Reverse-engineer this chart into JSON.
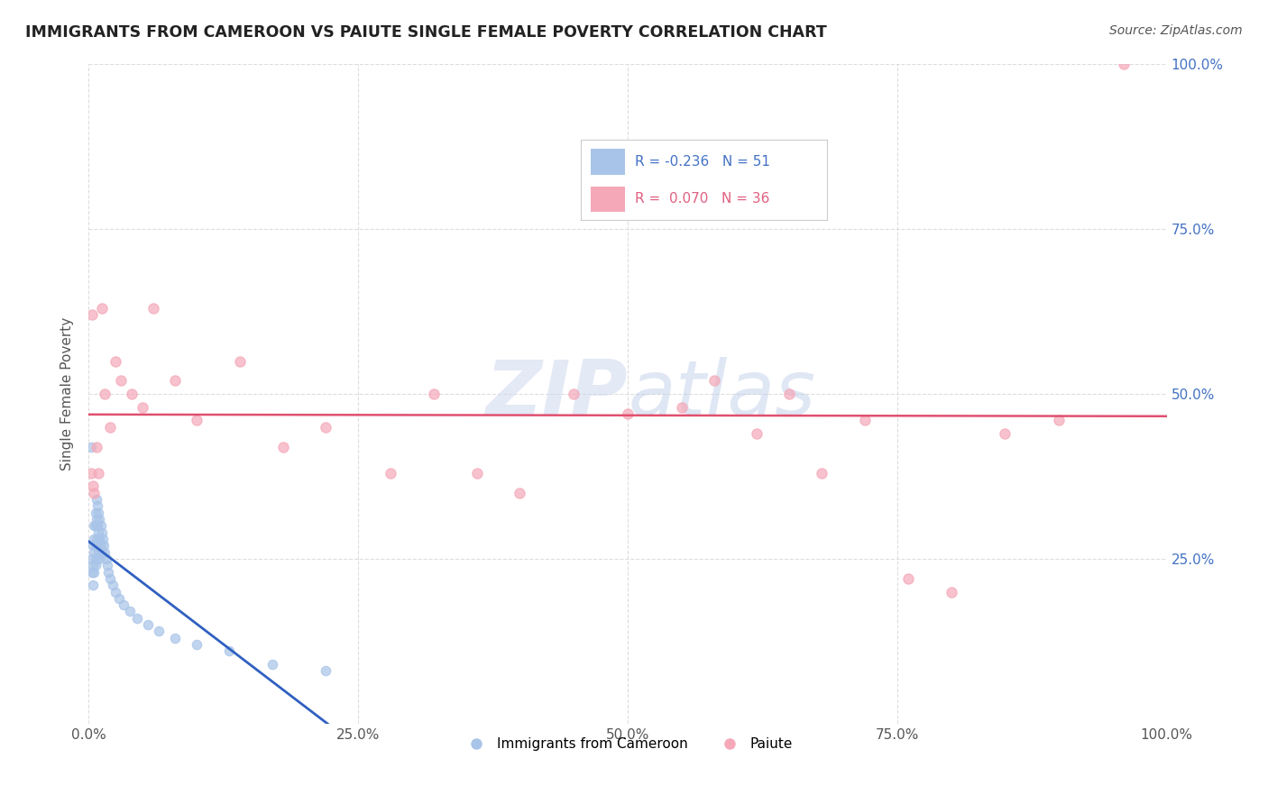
{
  "title": "IMMIGRANTS FROM CAMEROON VS PAIUTE SINGLE FEMALE POVERTY CORRELATION CHART",
  "source": "Source: ZipAtlas.com",
  "ylabel": "Single Female Poverty",
  "legend_label_blue": "Immigrants from Cameroon",
  "legend_label_pink": "Paiute",
  "R_blue": -0.236,
  "N_blue": 51,
  "R_pink": 0.07,
  "N_pink": 36,
  "blue_color": "#a8c4e8",
  "pink_color": "#f4a8b8",
  "trend_blue": "#3060c0",
  "trend_pink": "#e05070",
  "watermark": "ZIPatlas",
  "xlim": [
    0,
    1
  ],
  "ylim": [
    0,
    1
  ],
  "xticks": [
    0.0,
    0.25,
    0.5,
    0.75,
    1.0
  ],
  "yticks": [
    0.0,
    0.25,
    0.5,
    0.75,
    1.0
  ],
  "xticklabels": [
    "0.0%",
    "25.0%",
    "50.0%",
    "75.0%",
    "100.0%"
  ],
  "right_yticklabels": [
    "",
    "25.0%",
    "50.0%",
    "75.0%",
    "100.0%"
  ],
  "blue_x": [
    0.002,
    0.003,
    0.003,
    0.004,
    0.004,
    0.004,
    0.005,
    0.005,
    0.005,
    0.005,
    0.006,
    0.006,
    0.006,
    0.006,
    0.007,
    0.007,
    0.007,
    0.007,
    0.008,
    0.008,
    0.008,
    0.009,
    0.009,
    0.009,
    0.01,
    0.01,
    0.01,
    0.011,
    0.011,
    0.012,
    0.012,
    0.013,
    0.014,
    0.015,
    0.016,
    0.017,
    0.018,
    0.02,
    0.022,
    0.025,
    0.028,
    0.032,
    0.038,
    0.045,
    0.055,
    0.065,
    0.08,
    0.1,
    0.13,
    0.17,
    0.22
  ],
  "blue_y": [
    0.42,
    0.25,
    0.23,
    0.27,
    0.24,
    0.21,
    0.3,
    0.28,
    0.26,
    0.23,
    0.32,
    0.3,
    0.27,
    0.24,
    0.34,
    0.31,
    0.28,
    0.25,
    0.33,
    0.3,
    0.27,
    0.32,
    0.29,
    0.26,
    0.31,
    0.28,
    0.25,
    0.3,
    0.27,
    0.29,
    0.26,
    0.28,
    0.27,
    0.26,
    0.25,
    0.24,
    0.23,
    0.22,
    0.21,
    0.2,
    0.19,
    0.18,
    0.17,
    0.16,
    0.15,
    0.14,
    0.13,
    0.12,
    0.11,
    0.09,
    0.08
  ],
  "pink_x": [
    0.002,
    0.003,
    0.004,
    0.005,
    0.007,
    0.009,
    0.012,
    0.015,
    0.02,
    0.025,
    0.03,
    0.04,
    0.05,
    0.06,
    0.08,
    0.1,
    0.14,
    0.18,
    0.22,
    0.28,
    0.32,
    0.36,
    0.4,
    0.45,
    0.5,
    0.55,
    0.58,
    0.62,
    0.65,
    0.68,
    0.72,
    0.76,
    0.8,
    0.85,
    0.9,
    0.96
  ],
  "pink_y": [
    0.38,
    0.62,
    0.36,
    0.35,
    0.42,
    0.38,
    0.63,
    0.5,
    0.45,
    0.55,
    0.52,
    0.5,
    0.48,
    0.63,
    0.52,
    0.46,
    0.55,
    0.42,
    0.45,
    0.38,
    0.5,
    0.38,
    0.35,
    0.5,
    0.47,
    0.48,
    0.52,
    0.44,
    0.5,
    0.38,
    0.46,
    0.22,
    0.2,
    0.44,
    0.46,
    1.0
  ]
}
